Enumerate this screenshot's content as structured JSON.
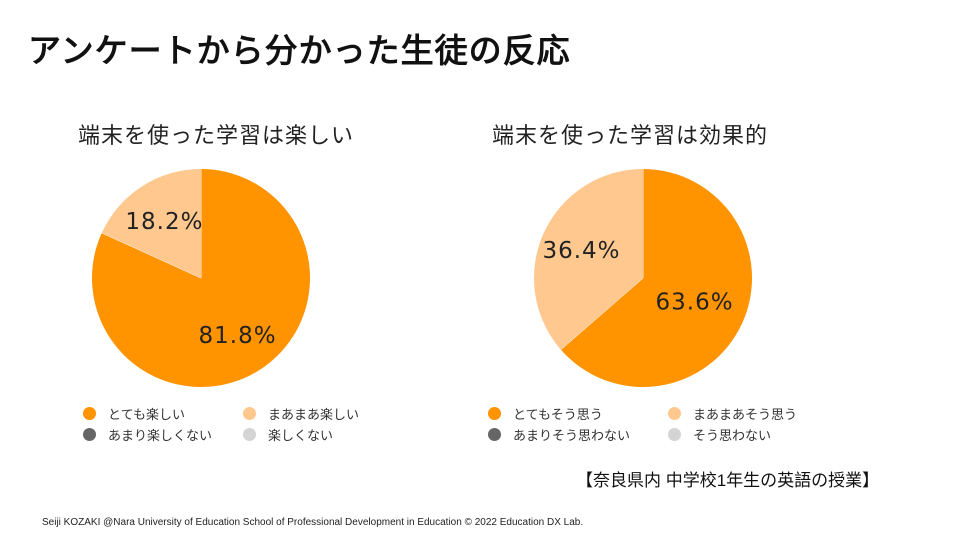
{
  "slide": {
    "title": "アンケートから分かった生徒の反応",
    "note": "【奈良県内 中学校1年生の英語の授業】",
    "footer": "Seiji KOZAKI @Nara University of Education School of Professional Development in Education  © 2022 Education DX Lab."
  },
  "colors": {
    "very": "#FF9300",
    "somewhat": "#FFC88F",
    "not_much": "#666666",
    "not": "#D4D4D4"
  },
  "chart_data": [
    {
      "type": "pie",
      "title": "端末を使った学習は楽しい",
      "categories": [
        "とても楽しい",
        "まあまあ楽しい",
        "あまり楽しくない",
        "楽しくない"
      ],
      "values": [
        81.8,
        18.2,
        0,
        0
      ],
      "data_labels": [
        "81.8%",
        "18.2%",
        "",
        ""
      ],
      "legend_position": "bottom"
    },
    {
      "type": "pie",
      "title": "端末を使った学習は効果的",
      "categories": [
        "とてもそう思う",
        "まあまあそう思う",
        "あまりそう思わない",
        "そう思わない"
      ],
      "values": [
        63.6,
        36.4,
        0,
        0
      ],
      "data_labels": [
        "63.6%",
        "36.4%",
        "",
        ""
      ],
      "legend_position": "bottom"
    }
  ]
}
